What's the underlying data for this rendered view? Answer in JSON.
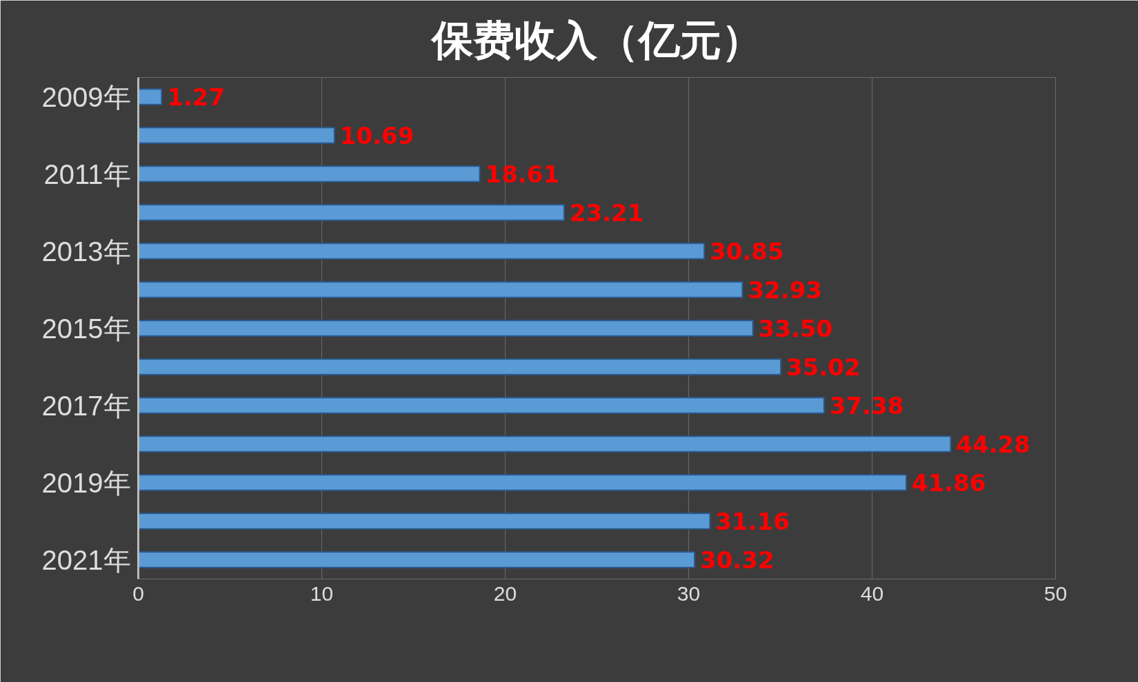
{
  "chart_data": {
    "type": "bar",
    "orientation": "horizontal",
    "title": "保费收入（亿元）",
    "categories": [
      "2009年",
      null,
      "2011年",
      null,
      "2013年",
      null,
      "2015年",
      null,
      "2017年",
      null,
      "2019年",
      null,
      "2021年"
    ],
    "values": [
      1.27,
      10.69,
      18.61,
      23.21,
      30.85,
      32.93,
      33.5,
      35.02,
      37.38,
      44.28,
      41.86,
      31.16,
      30.32
    ],
    "value_labels": [
      "1.27",
      "10.69",
      "18.61",
      "23.21",
      "30.85",
      "32.93",
      "33.50",
      "35.02",
      "37.38",
      "44.28",
      "41.86",
      "31.16",
      "30.32"
    ],
    "color": "#5b9bd5",
    "xlim": [
      0,
      50
    ],
    "xticks": [
      0,
      10,
      20,
      30,
      40,
      50
    ],
    "grid": "x"
  }
}
